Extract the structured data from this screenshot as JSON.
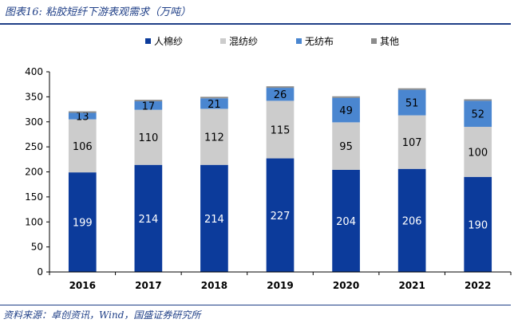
{
  "header": {
    "title": "图表16:  粘胶短纤下游表观需求（万吨）"
  },
  "footer": {
    "source": "资料来源：卓创资讯，Wind，国盛证券研究所"
  },
  "colors": {
    "cotton": "#0c3b9b",
    "blend": "#cccccc",
    "nonwoven": "#4a86d0",
    "other": "#8c8c8c",
    "accent": "#1f3f87"
  },
  "chart_data": {
    "type": "bar",
    "stacked": true,
    "title": "粘胶短纤下游表观需求（万吨）",
    "categories": [
      "2016",
      "2017",
      "2018",
      "2019",
      "2020",
      "2021",
      "2022"
    ],
    "series": [
      {
        "name": "人棉纱",
        "values": [
          199,
          214,
          214,
          227,
          204,
          206,
          190
        ],
        "color": "#0c3b9b",
        "label_color": "#ffffff"
      },
      {
        "name": "混纺纱",
        "values": [
          106,
          110,
          112,
          115,
          95,
          107,
          100
        ],
        "color": "#cccccc",
        "label_color": "#000000"
      },
      {
        "name": "无纺布",
        "values": [
          13,
          17,
          21,
          26,
          49,
          51,
          52
        ],
        "color": "#4a86d0",
        "label_color": "#000000"
      },
      {
        "name": "其他",
        "values": [
          3,
          3,
          3,
          3,
          3,
          3,
          3
        ],
        "color": "#8c8c8c",
        "label_color": null
      }
    ],
    "ylim": [
      0,
      400
    ],
    "yticks": [
      0,
      50,
      100,
      150,
      200,
      250,
      300,
      350,
      400
    ],
    "xlabel": "",
    "ylabel": "",
    "legend": "top"
  }
}
